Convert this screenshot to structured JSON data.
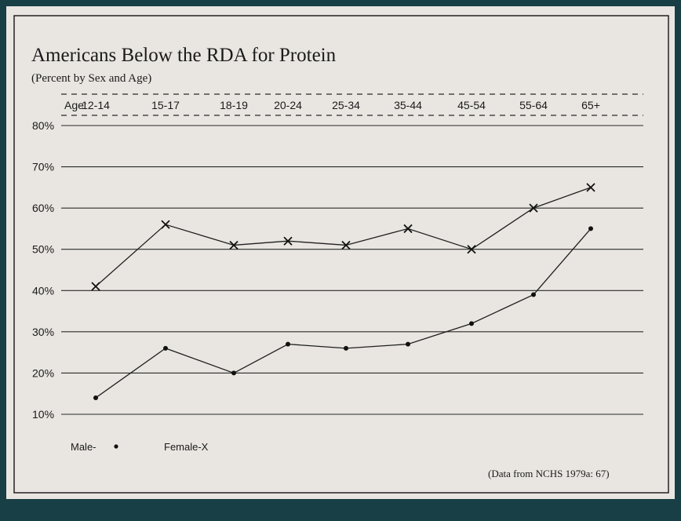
{
  "chart_data": {
    "type": "line",
    "title": "Americans Below the RDA for Protein",
    "subtitle": "(Percent by Sex and Age)",
    "x_axis_label": "Age:",
    "categories": [
      "12-14",
      "15-17",
      "18-19",
      "20-24",
      "25-34",
      "35-44",
      "45-54",
      "55-64",
      "65+"
    ],
    "y_tick_labels": [
      "80%",
      "70%",
      "60%",
      "50%",
      "40%",
      "30%",
      "20%",
      "10%"
    ],
    "ylim": [
      10,
      80
    ],
    "series": [
      {
        "name": "Male",
        "legend_label": "Male-",
        "marker": "dot",
        "values": [
          14,
          26,
          20,
          27,
          26,
          27,
          32,
          39,
          55
        ]
      },
      {
        "name": "Female",
        "legend_label": "Female-X",
        "marker": "x",
        "values": [
          41,
          56,
          51,
          52,
          51,
          55,
          50,
          60,
          65
        ]
      }
    ],
    "source": "(Data from NCHS 1979a: 67)",
    "grid": true
  }
}
